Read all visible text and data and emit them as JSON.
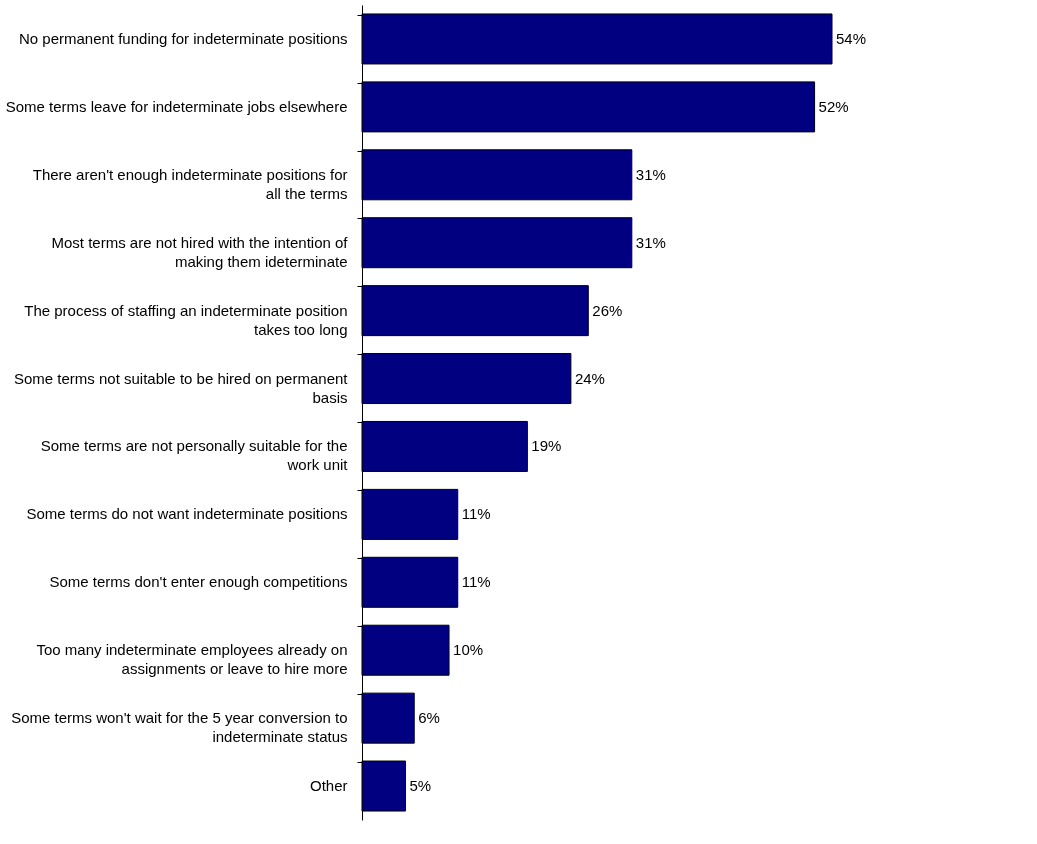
{
  "chart_data": {
    "type": "bar",
    "orientation": "horizontal",
    "categories": [
      "No permanent funding for indeterminate positions",
      "Some terms leave for indeterminate jobs elsewhere",
      "There aren't enough indeterminate positions for all the terms",
      "Most terms are not hired with the intention of making them ideterminate",
      "The process of staffing an indeterminate position takes too long",
      "Some terms not suitable to be hired on permanent basis",
      "Some terms are not personally suitable for the work unit",
      "Some terms do not want indeterminate positions",
      "Some terms don't enter enough competitions",
      "Too many indeterminate employees already on assignments or leave to hire more",
      "Some terms won't wait for the 5 year conversion to indeterminate status",
      "Other"
    ],
    "values": [
      54,
      52,
      31,
      31,
      26,
      24,
      19,
      11,
      11,
      10,
      6,
      5
    ],
    "value_labels": [
      "54%",
      "52%",
      "31%",
      "31%",
      "26%",
      "24%",
      "19%",
      "11%",
      "11%",
      "10%",
      "6%",
      "5%"
    ],
    "color": "#000080"
  }
}
